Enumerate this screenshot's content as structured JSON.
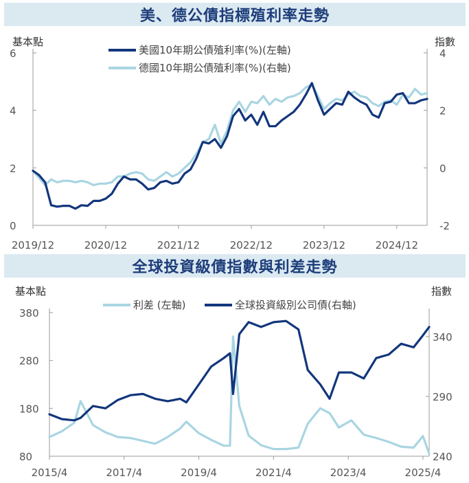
{
  "chart_data": [
    {
      "type": "line",
      "title": "美、德公債指標殖利率走勢",
      "y_left_unit": "基本點",
      "y_right_unit": "指數",
      "x_ticks": [
        "2019/12",
        "2020/12",
        "2021/12",
        "2022/12",
        "2023/12",
        "2024/12"
      ],
      "y_left_ticks": [
        "0",
        "2",
        "4",
        "6"
      ],
      "y_right_ticks": [
        "-2",
        "0",
        "2",
        "4"
      ],
      "y_left_range": [
        0,
        6
      ],
      "y_right_range": [
        -2,
        4
      ],
      "legend_position": "top-center",
      "grid": false,
      "series": [
        {
          "name": "美國10年期公債殖利率(%)(左軸)",
          "axis": "left",
          "color": "#12367c",
          "x": [
            "2019/12",
            "2020/01",
            "2020/02",
            "2020/03",
            "2020/04",
            "2020/05",
            "2020/06",
            "2020/07",
            "2020/08",
            "2020/09",
            "2020/10",
            "2020/11",
            "2020/12",
            "2021/01",
            "2021/02",
            "2021/03",
            "2021/04",
            "2021/05",
            "2021/06",
            "2021/07",
            "2021/08",
            "2021/09",
            "2021/10",
            "2021/11",
            "2021/12",
            "2022/01",
            "2022/02",
            "2022/03",
            "2022/04",
            "2022/05",
            "2022/06",
            "2022/07",
            "2022/08",
            "2022/09",
            "2022/10",
            "2022/11",
            "2022/12",
            "2023/01",
            "2023/02",
            "2023/03",
            "2023/04",
            "2023/05",
            "2023/06",
            "2023/07",
            "2023/08",
            "2023/09",
            "2023/10",
            "2023/11",
            "2023/12",
            "2024/01",
            "2024/02",
            "2024/03",
            "2024/04",
            "2024/05",
            "2024/06",
            "2024/07",
            "2024/08",
            "2024/09",
            "2024/10",
            "2024/11",
            "2024/12",
            "2025/01",
            "2025/02",
            "2025/03",
            "2025/04",
            "2025/05"
          ],
          "values": [
            1.9,
            1.75,
            1.5,
            0.7,
            0.65,
            0.68,
            0.68,
            0.58,
            0.7,
            0.68,
            0.85,
            0.85,
            0.93,
            1.1,
            1.45,
            1.7,
            1.6,
            1.6,
            1.45,
            1.25,
            1.3,
            1.5,
            1.55,
            1.45,
            1.5,
            1.8,
            1.95,
            2.35,
            2.9,
            2.85,
            3.0,
            2.7,
            3.1,
            3.8,
            4.05,
            3.65,
            3.85,
            3.5,
            3.95,
            3.45,
            3.45,
            3.65,
            3.8,
            3.95,
            4.2,
            4.55,
            4.95,
            4.35,
            3.85,
            4.05,
            4.25,
            4.2,
            4.65,
            4.45,
            4.3,
            4.2,
            3.85,
            3.75,
            4.25,
            4.3,
            4.55,
            4.6,
            4.25,
            4.25,
            4.35,
            4.4
          ]
        },
        {
          "name": "德國10年期公債殖利率(%)(右軸)",
          "axis": "right",
          "color": "#a9d5e2",
          "x": [
            "2019/12",
            "2020/01",
            "2020/02",
            "2020/03",
            "2020/04",
            "2020/05",
            "2020/06",
            "2020/07",
            "2020/08",
            "2020/09",
            "2020/10",
            "2020/11",
            "2020/12",
            "2021/01",
            "2021/02",
            "2021/03",
            "2021/04",
            "2021/05",
            "2021/06",
            "2021/07",
            "2021/08",
            "2021/09",
            "2021/10",
            "2021/11",
            "2021/12",
            "2022/01",
            "2022/02",
            "2022/03",
            "2022/04",
            "2022/05",
            "2022/06",
            "2022/07",
            "2022/08",
            "2022/09",
            "2022/10",
            "2022/11",
            "2022/12",
            "2023/01",
            "2023/02",
            "2023/03",
            "2023/04",
            "2023/05",
            "2023/06",
            "2023/07",
            "2023/08",
            "2023/09",
            "2023/10",
            "2023/11",
            "2023/12",
            "2024/01",
            "2024/02",
            "2024/03",
            "2024/04",
            "2024/05",
            "2024/06",
            "2024/07",
            "2024/08",
            "2024/09",
            "2024/10",
            "2024/11",
            "2024/12",
            "2025/01",
            "2025/02",
            "2025/03",
            "2025/04",
            "2025/05"
          ],
          "values": [
            -0.1,
            -0.35,
            -0.6,
            -0.4,
            -0.5,
            -0.45,
            -0.45,
            -0.5,
            -0.45,
            -0.5,
            -0.6,
            -0.55,
            -0.55,
            -0.5,
            -0.3,
            -0.3,
            -0.2,
            -0.15,
            -0.2,
            -0.4,
            -0.45,
            -0.3,
            -0.15,
            -0.3,
            -0.2,
            0.0,
            0.2,
            0.5,
            0.9,
            1.0,
            1.5,
            0.85,
            1.3,
            2.0,
            2.3,
            1.95,
            2.3,
            2.25,
            2.5,
            2.2,
            2.4,
            2.3,
            2.45,
            2.5,
            2.6,
            2.8,
            2.9,
            2.5,
            2.05,
            2.25,
            2.4,
            2.35,
            2.55,
            2.65,
            2.5,
            2.45,
            2.25,
            2.15,
            2.3,
            2.35,
            2.2,
            2.55,
            2.45,
            2.75,
            2.55,
            2.6
          ]
        }
      ]
    },
    {
      "type": "line",
      "title": "全球投資級債指數與利差走勢",
      "y_left_unit": "基本點",
      "y_right_unit": "指數",
      "x_ticks": [
        "2015/4",
        "2017/4",
        "2019/4",
        "2021/4",
        "2023/4",
        "2025/4"
      ],
      "y_left_ticks": [
        "80",
        "180",
        "280",
        "380"
      ],
      "y_right_ticks": [
        "240",
        "290",
        "340"
      ],
      "y_left_range": [
        80,
        380
      ],
      "y_right_range": [
        240,
        360
      ],
      "legend_position": "top-center",
      "grid": false,
      "series": [
        {
          "name": "利差 (左軸)",
          "axis": "left",
          "color": "#a9d5e2",
          "x": [
            "2015/4",
            "2015/8",
            "2015/12",
            "2016/2",
            "2016/6",
            "2016/10",
            "2017/2",
            "2017/6",
            "2017/10",
            "2018/2",
            "2018/6",
            "2018/10",
            "2018/12",
            "2019/4",
            "2019/8",
            "2019/12",
            "2020/2",
            "2020/3",
            "2020/5",
            "2020/8",
            "2020/12",
            "2021/4",
            "2021/8",
            "2021/12",
            "2022/3",
            "2022/7",
            "2022/10",
            "2023/1",
            "2023/5",
            "2023/9",
            "2024/1",
            "2024/5",
            "2024/9",
            "2025/1",
            "2025/4",
            "2025/6"
          ],
          "values": [
            120,
            132,
            150,
            195,
            145,
            130,
            120,
            118,
            112,
            106,
            120,
            138,
            152,
            128,
            114,
            102,
            102,
            330,
            185,
            123,
            103,
            95,
            95,
            98,
            148,
            180,
            170,
            140,
            155,
            125,
            118,
            110,
            100,
            98,
            122,
            85
          ]
        },
        {
          "name": "全球投資級別公司債(右軸)",
          "axis": "right",
          "color": "#12367c",
          "x": [
            "2015/4",
            "2015/8",
            "2015/12",
            "2016/2",
            "2016/6",
            "2016/10",
            "2017/2",
            "2017/6",
            "2017/10",
            "2018/2",
            "2018/6",
            "2018/10",
            "2018/12",
            "2019/4",
            "2019/8",
            "2019/12",
            "2020/2",
            "2020/3",
            "2020/5",
            "2020/8",
            "2020/12",
            "2021/4",
            "2021/8",
            "2021/12",
            "2022/3",
            "2022/7",
            "2022/10",
            "2023/1",
            "2023/5",
            "2023/9",
            "2024/1",
            "2024/5",
            "2024/9",
            "2025/1",
            "2025/4",
            "2025/6"
          ],
          "values": [
            275,
            271,
            270,
            272,
            282,
            280,
            287,
            291,
            292,
            288,
            286,
            288,
            285,
            300,
            315,
            322,
            326,
            292,
            342,
            352,
            348,
            352,
            353,
            346,
            312,
            300,
            288,
            310,
            310,
            305,
            322,
            325,
            334,
            331,
            341,
            348
          ]
        }
      ]
    }
  ]
}
